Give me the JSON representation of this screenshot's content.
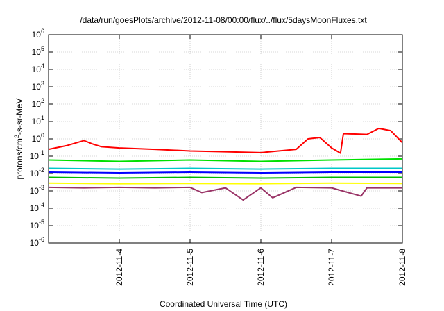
{
  "chart_data": {
    "type": "line",
    "title": "/data/run/goesPlots/archive/2012-11-08/00:00/flux/../flux/5daysMoonFluxes.txt",
    "xlabel": "Coordinated Universal Time (UTC)",
    "ylabel_parts": [
      "protons/cm",
      "2",
      "-s-sr-MeV"
    ],
    "y_scale": "log",
    "ylim": [
      1e-06,
      1000000.0
    ],
    "y_ticks": [
      {
        "base": "10",
        "exp": "-6",
        "v": -6
      },
      {
        "base": "10",
        "exp": "-5",
        "v": -5
      },
      {
        "base": "10",
        "exp": "-4",
        "v": -4
      },
      {
        "base": "10",
        "exp": "-3",
        "v": -3
      },
      {
        "base": "10",
        "exp": "-2",
        "v": -2
      },
      {
        "base": "10",
        "exp": "-1",
        "v": -1
      },
      {
        "base": "10",
        "exp": "0",
        "v": 0
      },
      {
        "base": "10",
        "exp": "1",
        "v": 1
      },
      {
        "base": "10",
        "exp": "2",
        "v": 2
      },
      {
        "base": "10",
        "exp": "3",
        "v": 3
      },
      {
        "base": "10",
        "exp": "4",
        "v": 4
      },
      {
        "base": "10",
        "exp": "5",
        "v": 5
      },
      {
        "base": "10",
        "exp": "6",
        "v": 6
      }
    ],
    "xlim": [
      "2012-11-03 00:00",
      "2012-11-08 00:00"
    ],
    "x_ticks": [
      "2012-11-4",
      "2012-11-5",
      "2012-11-6",
      "2012-11-7",
      "2012-11-8"
    ],
    "grid": true,
    "legend": "none",
    "series": [
      {
        "color": "#ff0000",
        "x": [
          "2012-11-03 00:00",
          "2012-11-03 06:00",
          "2012-11-03 12:00",
          "2012-11-03 15:00",
          "2012-11-03 18:00",
          "2012-11-04 00:00",
          "2012-11-04 12:00",
          "2012-11-05 00:00",
          "2012-11-05 12:00",
          "2012-11-06 00:00",
          "2012-11-06 12:00",
          "2012-11-06 16:00",
          "2012-11-06 20:00",
          "2012-11-07 00:00",
          "2012-11-07 03:00",
          "2012-11-07 04:00",
          "2012-11-07 12:00",
          "2012-11-07 16:00",
          "2012-11-07 20:00",
          "2012-11-08 00:00"
        ],
        "y": [
          0.25,
          0.4,
          0.8,
          0.5,
          0.35,
          0.3,
          0.25,
          0.2,
          0.18,
          0.16,
          0.25,
          1.0,
          1.2,
          0.3,
          0.15,
          2.0,
          1.8,
          4.0,
          3.0,
          0.6
        ]
      },
      {
        "color": "#00e000",
        "x": [
          "2012-11-03 00:00",
          "2012-11-04 00:00",
          "2012-11-05 00:00",
          "2012-11-06 00:00",
          "2012-11-07 00:00",
          "2012-11-08 00:00"
        ],
        "y": [
          0.06,
          0.05,
          0.06,
          0.05,
          0.06,
          0.07
        ]
      },
      {
        "color": "#00c8c8",
        "x": [
          "2012-11-03 00:00",
          "2012-11-04 00:00",
          "2012-11-05 00:00",
          "2012-11-06 00:00",
          "2012-11-07 00:00",
          "2012-11-08 00:00"
        ],
        "y": [
          0.02,
          0.018,
          0.02,
          0.018,
          0.02,
          0.02
        ]
      },
      {
        "color": "#0000ff",
        "x": [
          "2012-11-03 00:00",
          "2012-11-04 00:00",
          "2012-11-05 00:00",
          "2012-11-06 00:00",
          "2012-11-07 00:00",
          "2012-11-08 00:00"
        ],
        "y": [
          0.012,
          0.011,
          0.012,
          0.011,
          0.012,
          0.012
        ]
      },
      {
        "color": "#00bb00",
        "x": [
          "2012-11-03 00:00",
          "2012-11-04 00:00",
          "2012-11-05 00:00",
          "2012-11-06 00:00",
          "2012-11-07 00:00",
          "2012-11-08 00:00"
        ],
        "y": [
          0.006,
          0.0055,
          0.006,
          0.0055,
          0.006,
          0.006
        ]
      },
      {
        "color": "#ffff00",
        "x": [
          "2012-11-03 00:00",
          "2012-11-04 00:00",
          "2012-11-05 00:00",
          "2012-11-06 00:00",
          "2012-11-07 00:00",
          "2012-11-08 00:00"
        ],
        "y": [
          0.0028,
          0.0026,
          0.0027,
          0.0026,
          0.0028,
          0.0027
        ]
      },
      {
        "color": "#993366",
        "x": [
          "2012-11-03 00:00",
          "2012-11-03 12:00",
          "2012-11-04 00:00",
          "2012-11-04 12:00",
          "2012-11-05 00:00",
          "2012-11-05 04:00",
          "2012-11-05 12:00",
          "2012-11-05 18:00",
          "2012-11-06 00:00",
          "2012-11-06 04:00",
          "2012-11-06 12:00",
          "2012-11-07 00:00",
          "2012-11-07 10:00",
          "2012-11-07 12:00",
          "2012-11-08 00:00"
        ],
        "y": [
          0.0016,
          0.0015,
          0.0016,
          0.0015,
          0.0016,
          0.0008,
          0.0015,
          0.0003,
          0.0015,
          0.0004,
          0.0016,
          0.0015,
          0.0005,
          0.0015,
          0.0015
        ]
      }
    ]
  }
}
